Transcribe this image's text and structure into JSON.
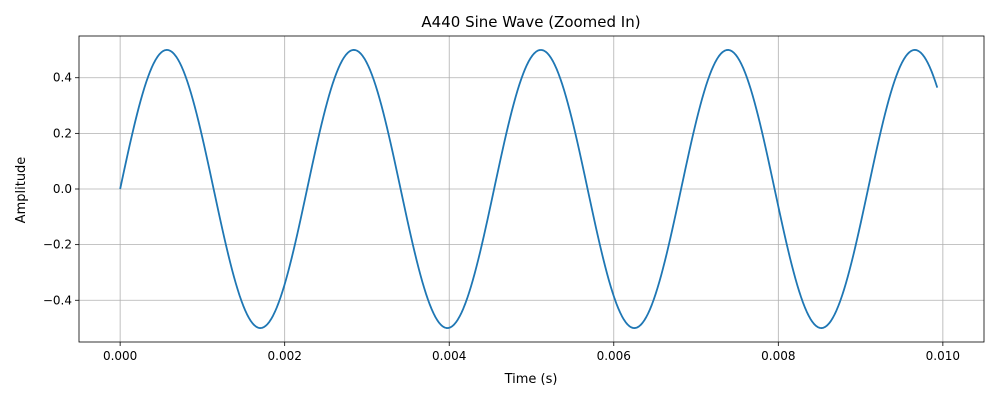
{
  "chart_data": {
    "type": "line",
    "title": "A440 Sine Wave (Zoomed In)",
    "xlabel": "Time (s)",
    "ylabel": "Amplitude",
    "xlim": [
      -0.0005,
      0.0105
    ],
    "ylim": [
      -0.55,
      0.55
    ],
    "grid": true,
    "x_ticks": [
      0.0,
      0.002,
      0.004,
      0.006,
      0.008,
      0.01
    ],
    "x_tick_labels": [
      "0.000",
      "0.002",
      "0.004",
      "0.006",
      "0.008",
      "0.010"
    ],
    "y_ticks": [
      -0.4,
      -0.2,
      0.0,
      0.2,
      0.4
    ],
    "y_tick_labels": [
      "−0.4",
      "−0.2",
      "0.0",
      "0.2",
      "0.4"
    ],
    "series": [
      {
        "color": "#1f77b4",
        "function": "0.5*sin(2*pi*440*t)",
        "x_range": [
          0.0,
          0.00995
        ],
        "sample_rate": 44100
      }
    ]
  }
}
